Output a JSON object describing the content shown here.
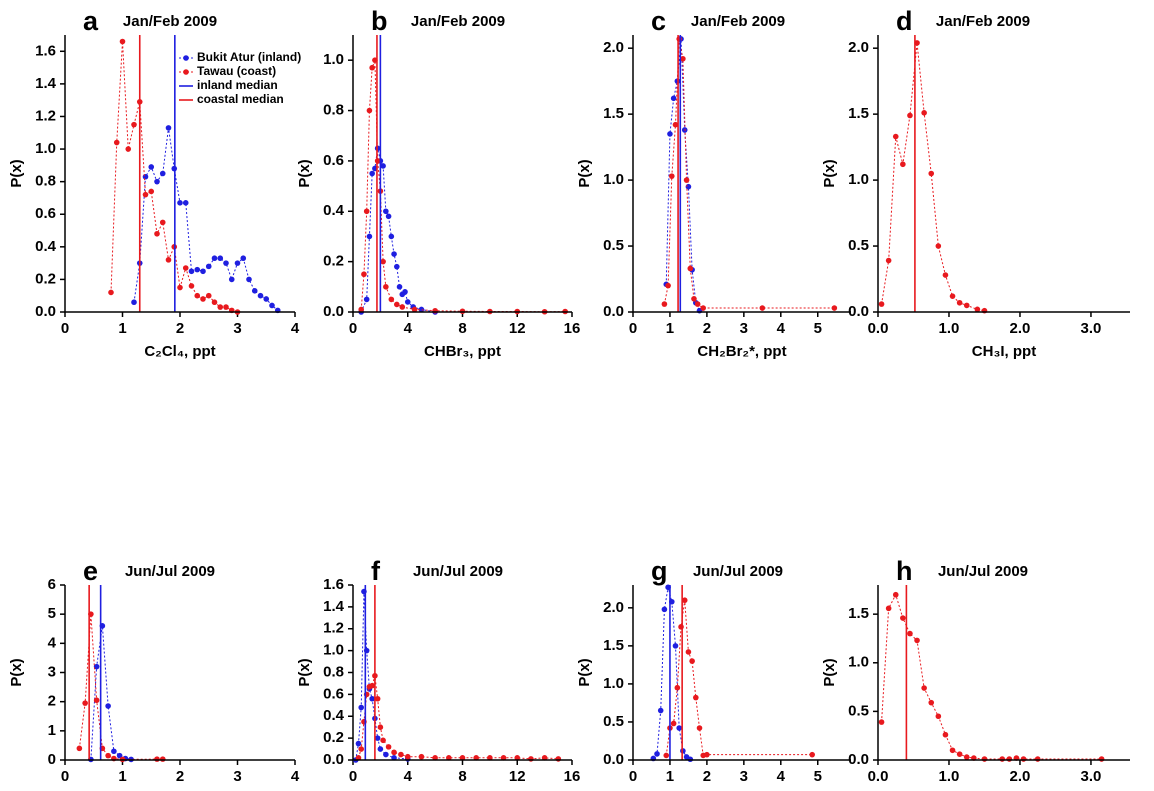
{
  "legend": [
    {
      "name": "Bukit Atur (inland)",
      "color": "#1f1fe0",
      "style": "marker"
    },
    {
      "name": "Tawau (coast)",
      "color": "#e8191e",
      "style": "marker"
    },
    {
      "name": "inland median",
      "color": "#1f1fe0",
      "style": "line"
    },
    {
      "name": "coastal median",
      "color": "#e8191e",
      "style": "line"
    }
  ],
  "chart_data": [
    {
      "type": "line",
      "label": "a",
      "title": "Jan/Feb 2009",
      "xlabel": "C₂Cl₄, ppt",
      "ylabel": "P(x)",
      "xlim": [
        0,
        4
      ],
      "xticks": [
        0,
        1,
        2,
        3,
        4
      ],
      "ylim": [
        0,
        1.7
      ],
      "yticks": [
        {
          "value": 0,
          "label": "0.0"
        },
        0.2,
        0.4,
        0.6,
        0.8,
        {
          "value": 1,
          "label": "1.0"
        },
        1.2,
        1.4,
        1.6
      ],
      "series": [
        {
          "color": "#1f1fe0",
          "x": [
            1.2,
            1.3,
            1.4,
            1.5,
            1.6,
            1.7,
            1.8,
            1.9,
            2.0,
            2.1,
            2.2,
            2.3,
            2.4,
            2.5,
            2.6,
            2.7,
            2.8,
            2.9,
            3.0,
            3.1,
            3.2,
            3.3,
            3.4,
            3.5,
            3.6,
            3.7
          ],
          "values": [
            0.06,
            0.3,
            0.83,
            0.89,
            0.8,
            0.85,
            1.13,
            0.88,
            0.67,
            0.67,
            0.25,
            0.26,
            0.25,
            0.28,
            0.33,
            0.33,
            0.3,
            0.2,
            0.3,
            0.33,
            0.2,
            0.13,
            0.1,
            0.08,
            0.04,
            0.01
          ]
        },
        {
          "color": "#e8191e",
          "x": [
            0.8,
            0.9,
            1.0,
            1.1,
            1.2,
            1.3,
            1.4,
            1.5,
            1.6,
            1.7,
            1.8,
            1.9,
            2.0,
            2.1,
            2.2,
            2.3,
            2.4,
            2.5,
            2.6,
            2.7,
            2.8,
            2.9,
            3.0
          ],
          "values": [
            0.12,
            1.04,
            1.66,
            1.0,
            1.15,
            1.29,
            0.72,
            0.74,
            0.48,
            0.55,
            0.32,
            0.4,
            0.15,
            0.27,
            0.16,
            0.1,
            0.08,
            0.1,
            0.06,
            0.03,
            0.03,
            0.01,
            0.0
          ]
        }
      ],
      "medians": [
        {
          "color": "#1f1fe0",
          "value": 1.91
        },
        {
          "color": "#e8191e",
          "value": 1.3
        }
      ]
    },
    {
      "type": "line",
      "label": "b",
      "title": "Jan/Feb 2009",
      "xlabel": "CHBr₃, ppt",
      "ylabel": "P(x)",
      "xlim": [
        0,
        16
      ],
      "xticks": [
        0,
        4,
        8,
        12,
        16
      ],
      "ylim": [
        0,
        1.1
      ],
      "yticks": [
        {
          "value": 0,
          "label": "0.0"
        },
        0.2,
        0.4,
        0.6,
        0.8,
        {
          "value": 1,
          "label": "1.0"
        }
      ],
      "series": [
        {
          "color": "#1f1fe0",
          "x": [
            0.6,
            1.0,
            1.2,
            1.4,
            1.6,
            1.8,
            2.0,
            2.2,
            2.4,
            2.6,
            2.8,
            3.0,
            3.2,
            3.4,
            3.6,
            3.8,
            4.0,
            4.4,
            5,
            6
          ],
          "values": [
            0,
            0.05,
            0.3,
            0.55,
            0.57,
            0.65,
            0.6,
            0.58,
            0.4,
            0.38,
            0.3,
            0.23,
            0.18,
            0.1,
            0.07,
            0.08,
            0.04,
            0.02,
            0.01,
            0.0
          ]
        },
        {
          "color": "#e8191e",
          "x": [
            0.6,
            0.8,
            1.0,
            1.2,
            1.4,
            1.6,
            1.8,
            2.0,
            2.2,
            2.4,
            2.8,
            3.2,
            3.6,
            4.5,
            6,
            8,
            10,
            12,
            14,
            15.5
          ],
          "values": [
            0.01,
            0.15,
            0.4,
            0.8,
            0.97,
            1.0,
            0.6,
            0.48,
            0.2,
            0.1,
            0.05,
            0.03,
            0.02,
            0.01,
            0.005,
            0.003,
            0.002,
            0.002,
            0.001,
            0.002
          ]
        }
      ],
      "medians": [
        {
          "color": "#1f1fe0",
          "value": 2.0
        },
        {
          "color": "#e8191e",
          "value": 1.75
        }
      ]
    },
    {
      "type": "line",
      "label": "c",
      "title": "Jan/Feb 2009",
      "xlabel": "CH₂Br₂*, ppt",
      "ylabel": "P(x)",
      "xlim": [
        0,
        5.9
      ],
      "xticks": [
        0,
        1,
        2,
        3,
        4,
        5
      ],
      "ylim": [
        0,
        2.1
      ],
      "yticks": [
        {
          "value": 0,
          "label": "0.0"
        },
        0.5,
        {
          "value": 1,
          "label": "1.0"
        },
        1.5,
        {
          "value": 2,
          "label": "2.0"
        }
      ],
      "series": [
        {
          "color": "#1f1fe0",
          "x": [
            0.9,
            1.0,
            1.1,
            1.2,
            1.3,
            1.4,
            1.5,
            1.6,
            1.7,
            1.8
          ],
          "values": [
            0.21,
            1.35,
            1.62,
            1.75,
            2.07,
            1.38,
            0.95,
            0.32,
            0.07,
            0.01
          ]
        },
        {
          "color": "#e8191e",
          "x": [
            0.85,
            0.95,
            1.05,
            1.15,
            1.25,
            1.35,
            1.45,
            1.55,
            1.65,
            1.75,
            1.9,
            3.5,
            5.45
          ],
          "values": [
            0.06,
            0.2,
            1.03,
            1.42,
            2.07,
            1.92,
            1.0,
            0.33,
            0.1,
            0.06,
            0.03,
            0.03,
            0.03
          ]
        }
      ],
      "medians": [
        {
          "color": "#1f1fe0",
          "value": 1.28
        },
        {
          "color": "#e8191e",
          "value": 1.22
        }
      ]
    },
    {
      "type": "line",
      "label": "d",
      "title": "Jan/Feb 2009",
      "xlabel": "CH₃I, ppt",
      "ylabel": "P(x)",
      "xlim": [
        0,
        3.55
      ],
      "xticks": [
        {
          "value": 0,
          "label": "0.0"
        },
        {
          "value": 1,
          "label": "1.0"
        },
        {
          "value": 2,
          "label": "2.0"
        },
        {
          "value": 3,
          "label": "3.0"
        }
      ],
      "ylim": [
        0,
        2.1
      ],
      "yticks": [
        {
          "value": 0,
          "label": "0.0"
        },
        0.5,
        {
          "value": 1,
          "label": "1.0"
        },
        1.5,
        {
          "value": 2,
          "label": "2.0"
        }
      ],
      "series": [
        {
          "color": "#e8191e",
          "x": [
            0.05,
            0.15,
            0.25,
            0.35,
            0.45,
            0.55,
            0.65,
            0.75,
            0.85,
            0.95,
            1.05,
            1.15,
            1.25,
            1.4,
            1.5
          ],
          "values": [
            0.06,
            0.39,
            1.33,
            1.12,
            1.49,
            2.04,
            1.51,
            1.05,
            0.5,
            0.28,
            0.12,
            0.07,
            0.05,
            0.02,
            0.01
          ]
        }
      ],
      "medians": [
        {
          "color": "#e8191e",
          "value": 0.52
        }
      ]
    },
    {
      "type": "line",
      "label": "e",
      "title": "Jun/Jul 2009",
      "xlabel": "C₂Cl₄, ppt",
      "ylabel": "P(x)",
      "xlim": [
        0,
        4
      ],
      "xticks": [
        0,
        1,
        2,
        3,
        4
      ],
      "ylim": [
        0,
        6
      ],
      "yticks": [
        0,
        1,
        2,
        3,
        4,
        5,
        6
      ],
      "series": [
        {
          "color": "#1f1fe0",
          "x": [
            0.45,
            0.55,
            0.65,
            0.75,
            0.85,
            0.95,
            1.05,
            1.15
          ],
          "values": [
            0.02,
            3.2,
            4.6,
            1.85,
            0.3,
            0.15,
            0.05,
            0.02
          ]
        },
        {
          "color": "#e8191e",
          "x": [
            0.25,
            0.35,
            0.45,
            0.55,
            0.65,
            0.75,
            0.85,
            1.0,
            1.6,
            1.7
          ],
          "values": [
            0.4,
            1.95,
            5.0,
            2.05,
            0.4,
            0.15,
            0.05,
            0.02,
            0.03,
            0.03
          ]
        }
      ],
      "medians": [
        {
          "color": "#1f1fe0",
          "value": 0.62
        },
        {
          "color": "#e8191e",
          "value": 0.42
        }
      ]
    },
    {
      "type": "line",
      "label": "f",
      "title": "Jun/Jul 2009",
      "xlabel": "CHBr₃, ppt",
      "ylabel": "P(x)",
      "xlim": [
        0,
        16
      ],
      "xticks": [
        0,
        4,
        8,
        12,
        16
      ],
      "ylim": [
        0,
        1.6
      ],
      "yticks": [
        {
          "value": 0,
          "label": "0.0"
        },
        0.2,
        0.4,
        0.6,
        0.8,
        {
          "value": 1,
          "label": "1.0"
        },
        1.2,
        1.4,
        1.6
      ],
      "series": [
        {
          "color": "#1f1fe0",
          "x": [
            0.2,
            0.4,
            0.6,
            0.8,
            1.0,
            1.2,
            1.4,
            1.6,
            1.8,
            2.0,
            2.4,
            3,
            4
          ],
          "values": [
            0.0,
            0.15,
            0.48,
            1.54,
            1.0,
            0.65,
            0.56,
            0.38,
            0.2,
            0.1,
            0.05,
            0.02,
            0.01
          ]
        },
        {
          "color": "#e8191e",
          "x": [
            0.4,
            0.6,
            0.8,
            1.0,
            1.2,
            1.4,
            1.6,
            1.8,
            2.0,
            2.2,
            2.6,
            3,
            3.5,
            4,
            5,
            6,
            7,
            8,
            9,
            10,
            11,
            12,
            13,
            14,
            15
          ],
          "values": [
            0.02,
            0.1,
            0.35,
            0.6,
            0.67,
            0.68,
            0.77,
            0.56,
            0.3,
            0.18,
            0.12,
            0.07,
            0.05,
            0.03,
            0.03,
            0.02,
            0.02,
            0.02,
            0.02,
            0.02,
            0.02,
            0.02,
            0.01,
            0.02,
            0.01
          ]
        }
      ],
      "medians": [
        {
          "color": "#1f1fe0",
          "value": 0.9
        },
        {
          "color": "#e8191e",
          "value": 1.6
        }
      ]
    },
    {
      "type": "line",
      "label": "g",
      "title": "Jun/Jul 2009",
      "xlabel": "CH₂Br₂*, ppt",
      "ylabel": "P(x)",
      "xlim": [
        0,
        5.9
      ],
      "xticks": [
        0,
        1,
        2,
        3,
        4,
        5
      ],
      "ylim": [
        0,
        2.3
      ],
      "yticks": [
        {
          "value": 0,
          "label": "0.0"
        },
        0.5,
        {
          "value": 1,
          "label": "1.0"
        },
        1.5,
        {
          "value": 2,
          "label": "2.0"
        }
      ],
      "series": [
        {
          "color": "#1f1fe0",
          "x": [
            0.55,
            0.65,
            0.75,
            0.85,
            0.95,
            1.05,
            1.15,
            1.25,
            1.35,
            1.45,
            1.55
          ],
          "values": [
            0.02,
            0.08,
            0.65,
            1.98,
            2.27,
            2.08,
            1.5,
            0.42,
            0.12,
            0.04,
            0.01
          ]
        },
        {
          "color": "#e8191e",
          "x": [
            0.9,
            1.0,
            1.1,
            1.2,
            1.3,
            1.4,
            1.5,
            1.6,
            1.7,
            1.8,
            1.9,
            2.0,
            4.85
          ],
          "values": [
            0.06,
            0.42,
            0.48,
            0.95,
            1.75,
            2.1,
            1.42,
            1.3,
            0.82,
            0.42,
            0.06,
            0.07,
            0.07
          ]
        }
      ],
      "medians": [
        {
          "color": "#1f1fe0",
          "value": 1.0
        },
        {
          "color": "#e8191e",
          "value": 1.33
        }
      ]
    },
    {
      "type": "line",
      "label": "h",
      "title": "Jun/Jul 2009",
      "xlabel": "CH₃I, ppt",
      "ylabel": "P(x)",
      "xlim": [
        0,
        3.55
      ],
      "xticks": [
        {
          "value": 0,
          "label": "0.0"
        },
        {
          "value": 1,
          "label": "1.0"
        },
        {
          "value": 2,
          "label": "2.0"
        },
        {
          "value": 3,
          "label": "3.0"
        }
      ],
      "ylim": [
        0,
        1.8
      ],
      "yticks": [
        {
          "value": 0,
          "label": "0.0"
        },
        0.5,
        {
          "value": 1,
          "label": "1.0"
        },
        1.5
      ],
      "series": [
        {
          "color": "#e8191e",
          "x": [
            0.05,
            0.15,
            0.25,
            0.35,
            0.45,
            0.55,
            0.65,
            0.75,
            0.85,
            0.95,
            1.05,
            1.15,
            1.25,
            1.35,
            1.5,
            1.75,
            1.85,
            1.95,
            2.05,
            2.25,
            3.15
          ],
          "values": [
            0.39,
            1.56,
            1.7,
            1.46,
            1.3,
            1.23,
            0.74,
            0.59,
            0.45,
            0.26,
            0.1,
            0.06,
            0.03,
            0.02,
            0.01,
            0.01,
            0.01,
            0.02,
            0.01,
            0.01,
            0.01
          ]
        }
      ],
      "medians": [
        {
          "color": "#e8191e",
          "value": 0.4
        }
      ]
    }
  ]
}
